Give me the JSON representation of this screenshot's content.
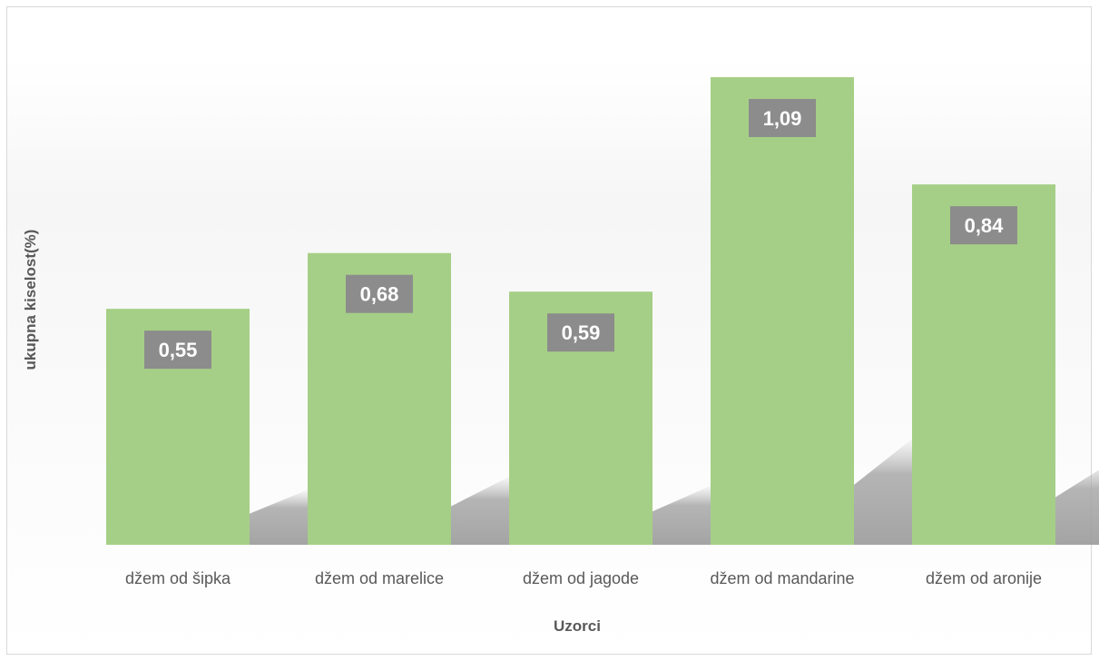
{
  "chart_data": {
    "type": "bar",
    "categories": [
      "džem od šipka",
      "džem od marelice",
      "džem od jagode",
      "džem od mandarine",
      "džem od aronije"
    ],
    "values": [
      0.55,
      0.68,
      0.59,
      1.09,
      0.84
    ],
    "data_labels": [
      "0,55",
      "0,68",
      "0,59",
      "1,09",
      "0,84"
    ],
    "title": "",
    "xlabel": "Uzorci",
    "ylabel": "ukupna kiselost(%)",
    "ylim": [
      0,
      1.2
    ],
    "grid": false,
    "legend": "none",
    "colors": {
      "bar": "#a5cf86",
      "label_box": "#8c8c8c",
      "label_text": "#ffffff",
      "axis_text": "#595959"
    }
  }
}
